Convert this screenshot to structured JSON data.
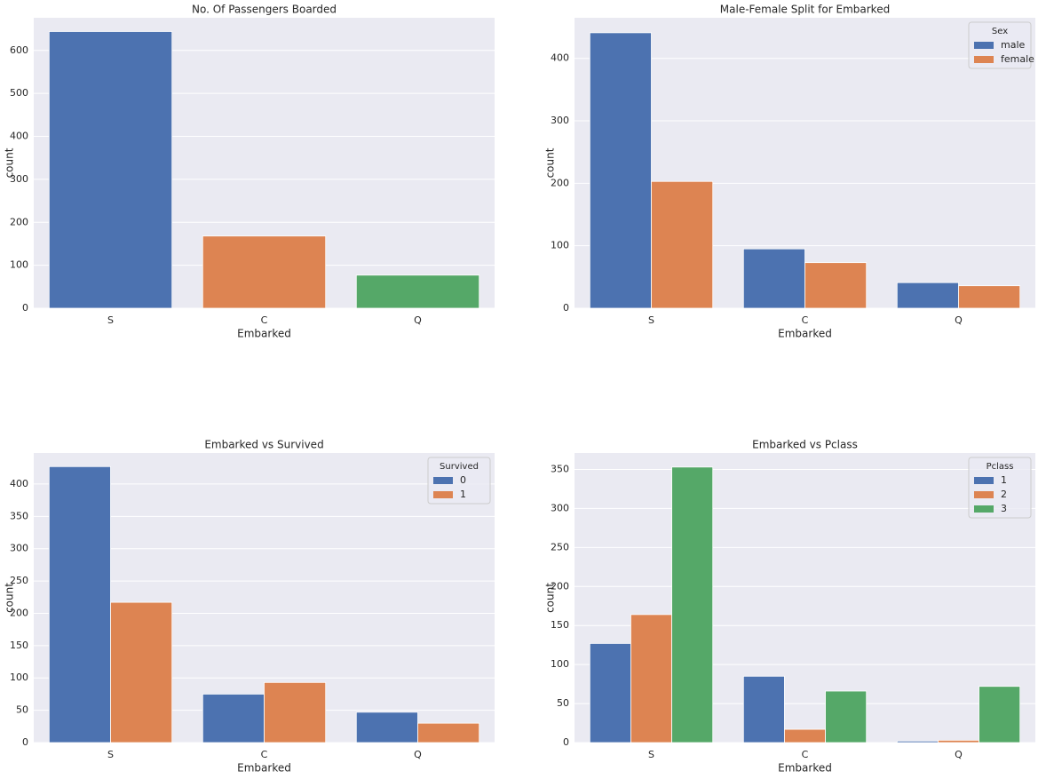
{
  "chart_data": [
    {
      "type": "bar",
      "title": "No. Of Passengers Boarded",
      "xlabel": "Embarked",
      "ylabel": "count",
      "categories": [
        "S",
        "C",
        "Q"
      ],
      "values": [
        644,
        168,
        77
      ],
      "colors": [
        "#4c72b0",
        "#dd8452",
        "#55a868"
      ],
      "ylim": [
        0,
        676
      ],
      "yticks": [
        0,
        100,
        200,
        300,
        400,
        500,
        600
      ],
      "grid": true
    },
    {
      "type": "bar",
      "title": "Male-Female Split for Embarked",
      "xlabel": "Embarked",
      "ylabel": "count",
      "categories": [
        "S",
        "C",
        "Q"
      ],
      "legend_title": "Sex",
      "legend": "upper right",
      "series": [
        {
          "name": "male",
          "color": "#4c72b0",
          "values": [
            441,
            95,
            41
          ]
        },
        {
          "name": "female",
          "color": "#dd8452",
          "values": [
            203,
            73,
            36
          ]
        }
      ],
      "ylim": [
        0,
        465
      ],
      "yticks": [
        0,
        100,
        200,
        300,
        400
      ],
      "grid": true
    },
    {
      "type": "bar",
      "title": "Embarked vs Survived",
      "xlabel": "Embarked",
      "ylabel": "count",
      "categories": [
        "S",
        "C",
        "Q"
      ],
      "legend_title": "Survived",
      "legend": "upper right",
      "series": [
        {
          "name": "0",
          "color": "#4c72b0",
          "values": [
            427,
            75,
            47
          ]
        },
        {
          "name": "1",
          "color": "#dd8452",
          "values": [
            217,
            93,
            30
          ]
        }
      ],
      "ylim": [
        0,
        448
      ],
      "yticks": [
        0,
        50,
        100,
        150,
        200,
        250,
        300,
        350,
        400
      ],
      "grid": true
    },
    {
      "type": "bar",
      "title": "Embarked vs Pclass",
      "xlabel": "Embarked",
      "ylabel": "count",
      "categories": [
        "S",
        "C",
        "Q"
      ],
      "legend_title": "Pclass",
      "legend": "upper right",
      "series": [
        {
          "name": "1",
          "color": "#4c72b0",
          "values": [
            127,
            85,
            2
          ]
        },
        {
          "name": "2",
          "color": "#dd8452",
          "values": [
            164,
            17,
            3
          ]
        },
        {
          "name": "3",
          "color": "#55a868",
          "values": [
            353,
            66,
            72
          ]
        }
      ],
      "ylim": [
        0,
        371
      ],
      "yticks": [
        0,
        50,
        100,
        150,
        200,
        250,
        300,
        350
      ],
      "grid": true
    }
  ]
}
